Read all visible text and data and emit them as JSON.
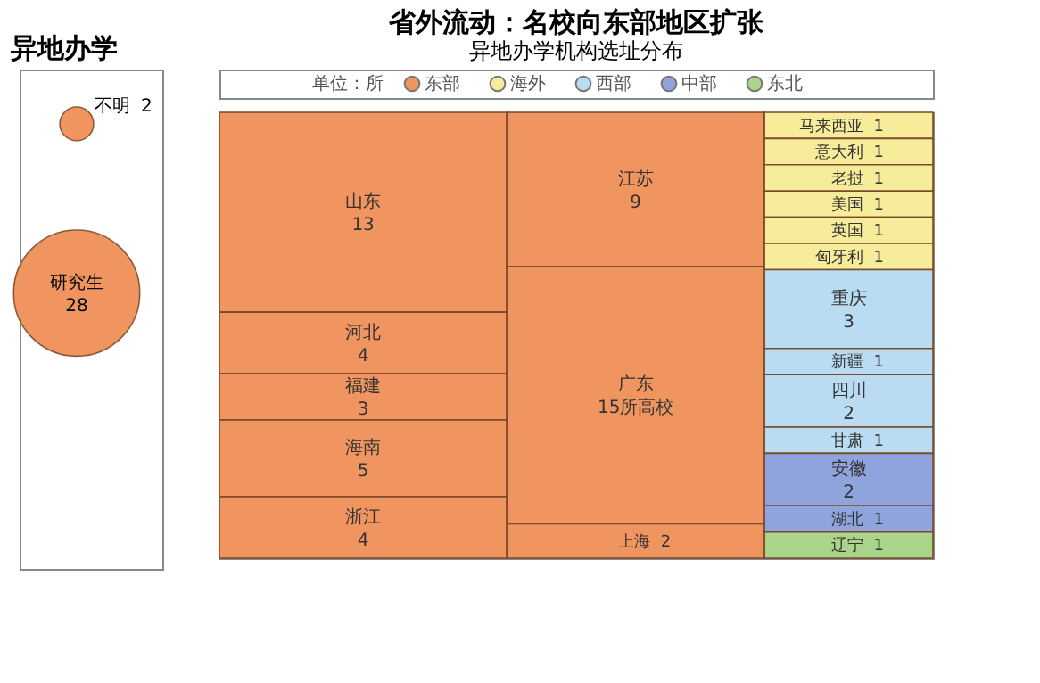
{
  "chart_data": [
    {
      "type": "other",
      "title": "异地办学",
      "categories": [
        "不明",
        "研究生"
      ],
      "values": [
        2,
        28
      ],
      "colors": [
        "#f0955f",
        "#f0955f"
      ],
      "data_labels": true
    },
    {
      "type": "other",
      "title": "省外流动：名校向东部地区扩张",
      "subtitle": "异地办学机构选址分布",
      "legend_title": "单位：所",
      "legend": "top",
      "categories": [
        "山东",
        "河北",
        "福建",
        "海南",
        "浙江",
        "江苏",
        "广东",
        "上海",
        "马来西亚",
        "意大利",
        "老挝",
        "美国",
        "英国",
        "匈牙利",
        "重庆",
        "新疆",
        "四川",
        "甘肃",
        "安徽",
        "湖北",
        "辽宁"
      ],
      "series": [
        {
          "name": "东部",
          "color": "#f0955f",
          "values": [
            13,
            4,
            3,
            5,
            4,
            9,
            15,
            2,
            null,
            null,
            null,
            null,
            null,
            null,
            null,
            null,
            null,
            null,
            null,
            null,
            null
          ],
          "value_labels": [
            "13",
            "4",
            "3",
            "5",
            "4",
            "9",
            "15所高校",
            "2",
            null,
            null,
            null,
            null,
            null,
            null,
            null,
            null,
            null,
            null,
            null,
            null,
            null
          ]
        },
        {
          "name": "海外",
          "color": "#f7ec9a",
          "values": [
            null,
            null,
            null,
            null,
            null,
            null,
            null,
            null,
            1,
            1,
            1,
            1,
            1,
            1,
            null,
            null,
            null,
            null,
            null,
            null,
            null
          ],
          "value_labels": [
            null,
            null,
            null,
            null,
            null,
            null,
            null,
            null,
            "1",
            "1",
            "1",
            "1",
            "1",
            "1",
            null,
            null,
            null,
            null,
            null,
            null,
            null
          ]
        },
        {
          "name": "西部",
          "color": "#b9dcf2",
          "values": [
            null,
            null,
            null,
            null,
            null,
            null,
            null,
            null,
            null,
            null,
            null,
            null,
            null,
            null,
            3,
            1,
            2,
            1,
            null,
            null,
            null
          ],
          "value_labels": [
            null,
            null,
            null,
            null,
            null,
            null,
            null,
            null,
            null,
            null,
            null,
            null,
            null,
            null,
            "3",
            "1",
            "2",
            "1",
            null,
            null,
            null
          ]
        },
        {
          "name": "中部",
          "color": "#8fa3dc",
          "values": [
            null,
            null,
            null,
            null,
            null,
            null,
            null,
            null,
            null,
            null,
            null,
            null,
            null,
            null,
            null,
            null,
            null,
            null,
            2,
            1,
            null
          ],
          "value_labels": [
            null,
            null,
            null,
            null,
            null,
            null,
            null,
            null,
            null,
            null,
            null,
            null,
            null,
            null,
            null,
            null,
            null,
            null,
            "2",
            "1",
            null
          ]
        },
        {
          "name": "东北",
          "color": "#a9d48a",
          "values": [
            null,
            null,
            null,
            null,
            null,
            null,
            null,
            null,
            null,
            null,
            null,
            null,
            null,
            null,
            null,
            null,
            null,
            null,
            null,
            null,
            1
          ],
          "value_labels": [
            null,
            null,
            null,
            null,
            null,
            null,
            null,
            null,
            null,
            null,
            null,
            null,
            null,
            null,
            null,
            null,
            null,
            null,
            null,
            null,
            "1"
          ]
        }
      ]
    }
  ]
}
